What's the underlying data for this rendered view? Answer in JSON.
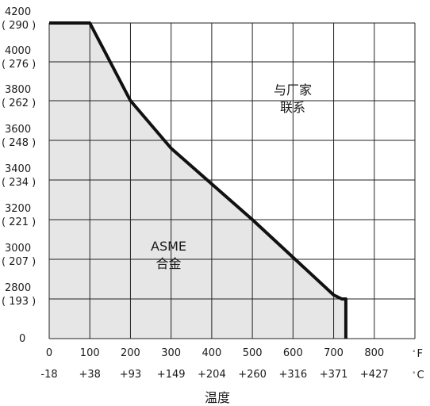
{
  "chart_data": {
    "type": "area",
    "x": [
      0,
      100,
      200,
      300,
      400,
      500,
      600,
      700,
      720,
      730,
      730
    ],
    "y": [
      4200,
      4200,
      3800,
      3560,
      3380,
      3200,
      3010,
      2820,
      2800,
      2800,
      0
    ],
    "x_ticks_f": [
      "0",
      "100",
      "200",
      "300",
      "400",
      "500",
      "600",
      "700",
      "800"
    ],
    "x_ticks_c": [
      "-18",
      "+38",
      "+93",
      "+149",
      "+204",
      "+260",
      "+316",
      "+371",
      "+427"
    ],
    "x_unit_f": "F",
    "x_unit_c": "C",
    "xlim": [
      0,
      900
    ],
    "y_ticks": [
      {
        "psi": "4200",
        "bar": "( 290 )"
      },
      {
        "psi": "4000",
        "bar": "( 276 )"
      },
      {
        "psi": "3800",
        "bar": "( 262 )"
      },
      {
        "psi": "3600",
        "bar": "( 248 )"
      },
      {
        "psi": "3400",
        "bar": "( 234 )"
      },
      {
        "psi": "3200",
        "bar": "( 221 )"
      },
      {
        "psi": "3000",
        "bar": "( 207 )"
      },
      {
        "psi": "2800",
        "bar": "( 193 )"
      },
      {
        "psi": "0",
        "bar": ""
      }
    ],
    "xlabel": "温度",
    "ylabel": "",
    "title": "",
    "grid": true,
    "annotations": {
      "region_inside": [
        "ASME",
        "合金"
      ],
      "region_outside": [
        "与厂家",
        "联系"
      ]
    },
    "fill_color": "#e6e6e6",
    "line_color": "#111111",
    "grid_color": "#222222"
  }
}
